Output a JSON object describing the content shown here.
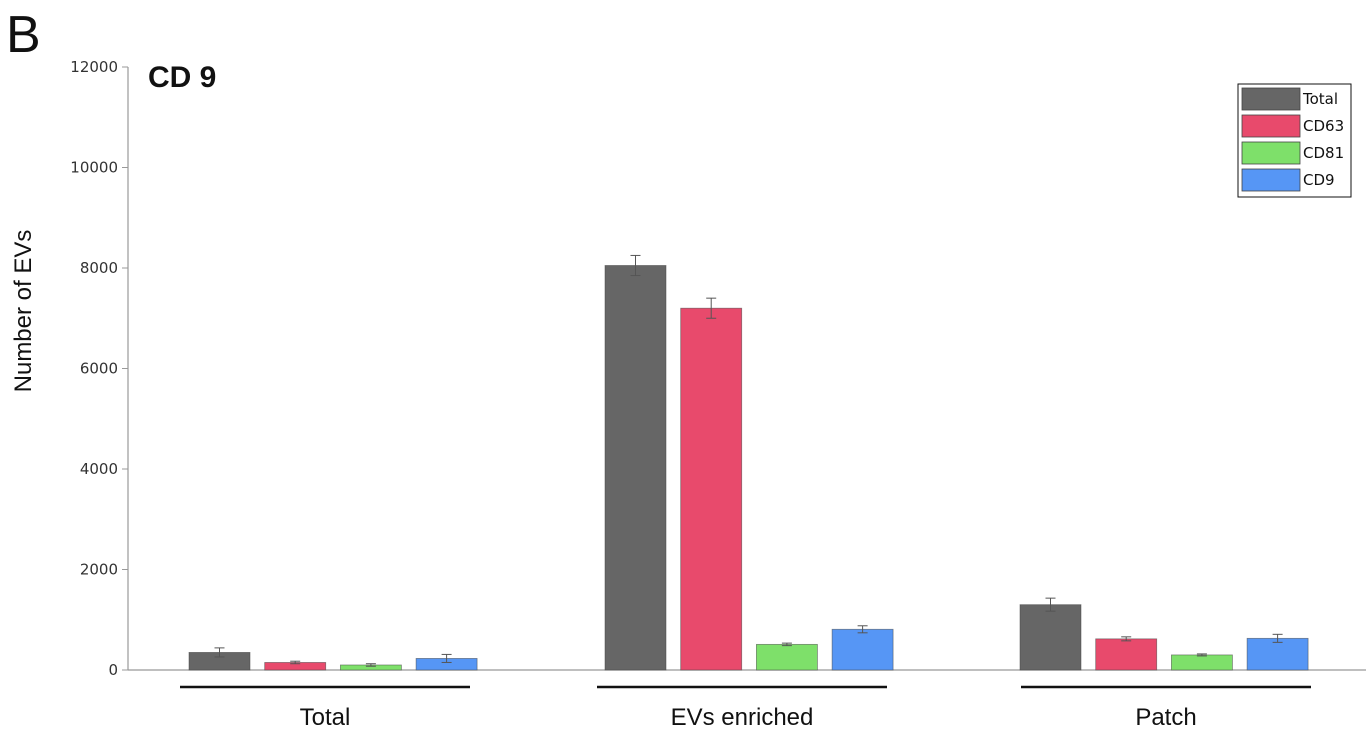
{
  "panel_letter": "B",
  "chart_data": {
    "type": "bar",
    "title": "CD 9",
    "xlabel": "",
    "ylabel": "Number of EVs",
    "ylim": [
      0,
      12000
    ],
    "yticks": [
      0,
      2000,
      4000,
      6000,
      8000,
      10000,
      12000
    ],
    "categories": [
      "Total",
      "EVs enriched",
      "Patch"
    ],
    "series": [
      {
        "name": "Total",
        "color": "#666666",
        "values": [
          350,
          8050,
          1300
        ],
        "errors": [
          90,
          200,
          130
        ]
      },
      {
        "name": "CD63",
        "color": "#e84a6c",
        "values": [
          150,
          7200,
          620
        ],
        "errors": [
          25,
          200,
          40
        ]
      },
      {
        "name": "CD81",
        "color": "#7ee06a",
        "values": [
          100,
          510,
          300
        ],
        "errors": [
          25,
          25,
          20
        ]
      },
      {
        "name": "CD9",
        "color": "#5696f5",
        "values": [
          230,
          810,
          630
        ],
        "errors": [
          80,
          70,
          80
        ]
      }
    ],
    "grid": false,
    "legend_position": "top-right"
  }
}
